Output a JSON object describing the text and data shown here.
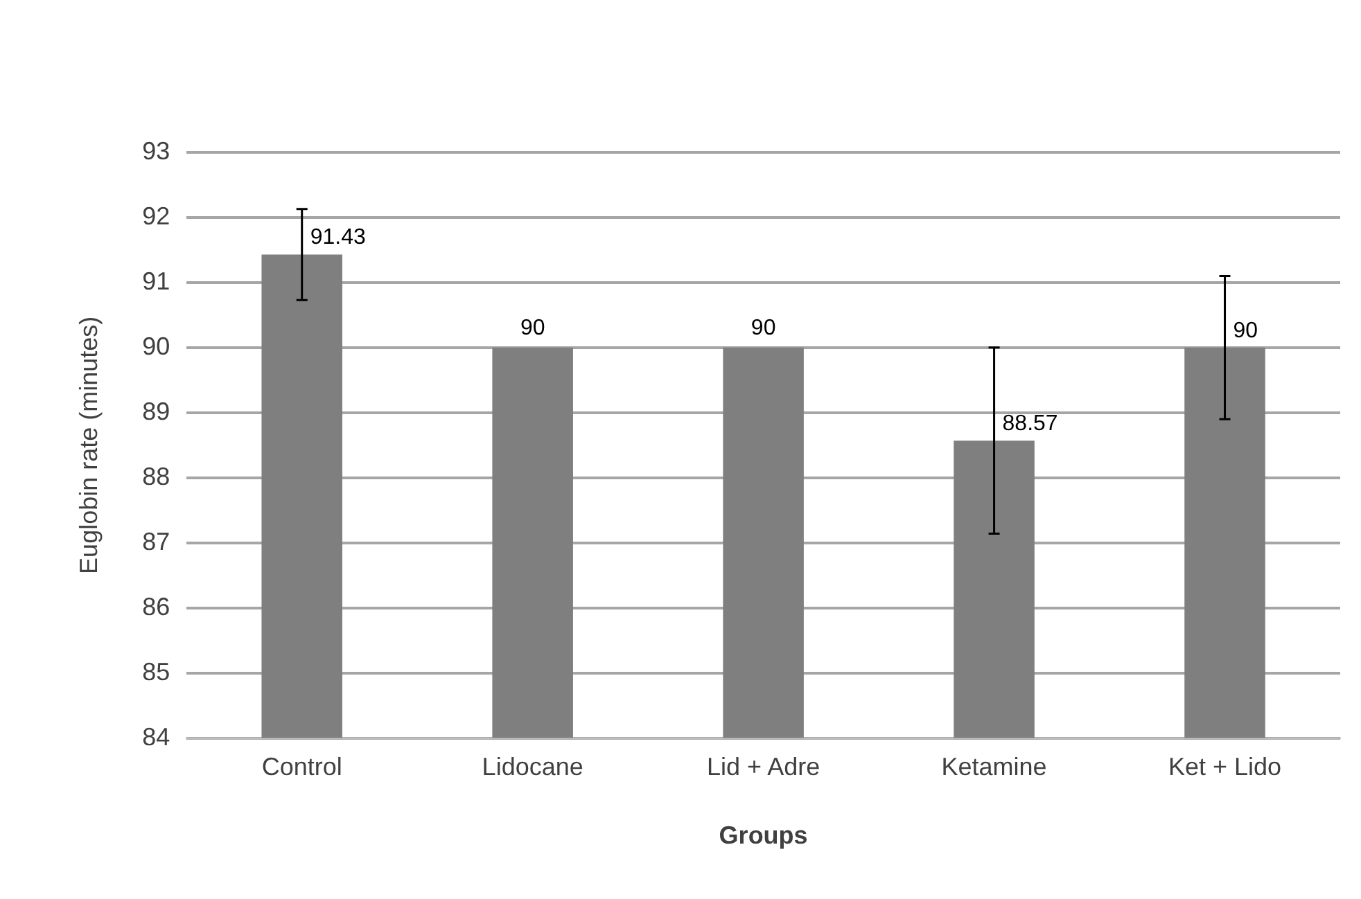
{
  "chart_data": {
    "type": "bar",
    "xlabel": "Groups",
    "ylabel": "Euglobin rate (minutes)",
    "categories": [
      "Control",
      "Lidocane",
      "Lid + Adre",
      "Ketamine",
      "Ket + Lido"
    ],
    "values": [
      91.43,
      90,
      90,
      88.57,
      90
    ],
    "errors": [
      0.7,
      null,
      null,
      1.43,
      1.1
    ],
    "color": "#7f7f7f",
    "ylim": [
      84,
      93
    ],
    "yticks": [
      84,
      85,
      86,
      87,
      88,
      89,
      90,
      91,
      92,
      93
    ],
    "grid": "y",
    "data_labels": true,
    "legend": false
  }
}
